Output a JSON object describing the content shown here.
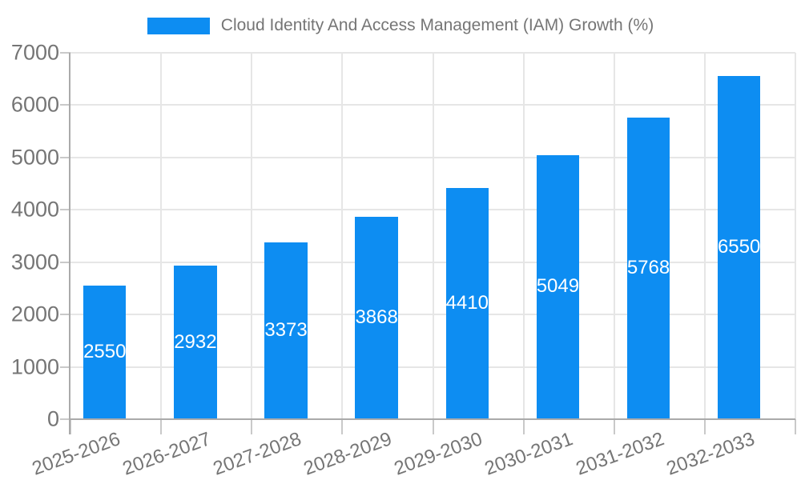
{
  "chart_data": {
    "type": "bar",
    "title": "Cloud Identity And Access Management (IAM) Growth (%)",
    "categories": [
      "2025-2026",
      "2026-2027",
      "2027-2028",
      "2028-2029",
      "2029-2030",
      "2030-2031",
      "2031-2032",
      "2032-2033"
    ],
    "values": [
      2550,
      2932,
      3373,
      3868,
      4410,
      5049,
      5768,
      6550
    ],
    "xlabel": "",
    "ylabel": "",
    "ylim": [
      0,
      7000
    ],
    "yticks": [
      0,
      1000,
      2000,
      3000,
      4000,
      5000,
      6000,
      7000
    ],
    "grid": true,
    "legend_position": "top-center",
    "value_label_position": "inside-center",
    "x_label_rotation_deg": -20
  },
  "colors": {
    "bar": "#0d8df2",
    "axis_text": "#757575",
    "legend_text": "#757575",
    "grid_line": "#e6e6e6",
    "tick_line": "#c9c9c9",
    "axis_line": "#aaaaaa",
    "value_label": "#ffffff",
    "background": "#ffffff"
  }
}
